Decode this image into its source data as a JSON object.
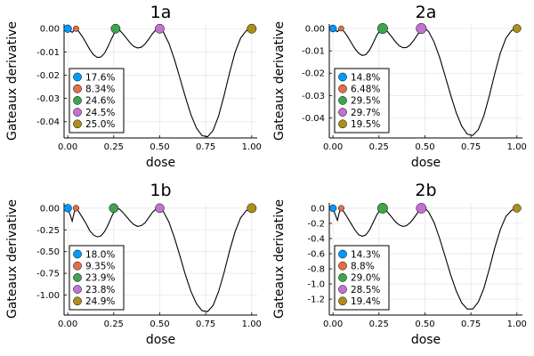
{
  "colors": {
    "s1": "#009AFA",
    "s2": "#E36F47",
    "s3": "#3EA44E",
    "s4": "#C371D2",
    "s5": "#AC8E18",
    "curve": "#000000",
    "grid": "#E6E6E6"
  },
  "chart_data": [
    {
      "type": "line",
      "title": "1a",
      "xlabel": "dose",
      "ylabel": "Gateaux derivative",
      "xlim": [
        -0.02,
        1.03
      ],
      "ylim": [
        -0.047,
        0.002
      ],
      "x_ticks": [
        0.0,
        0.25,
        0.5,
        0.75,
        1.0
      ],
      "x_tick_labels": [
        "0.00",
        "0.25",
        "0.50",
        "0.75",
        "1.00"
      ],
      "y_ticks": [
        0.0,
        -0.01,
        -0.02,
        -0.03,
        -0.04
      ],
      "y_tick_labels": [
        "0.00",
        "-0.01",
        "-0.02",
        "-0.03",
        "-0.04"
      ],
      "grid": true,
      "legend_position": "bottom-left",
      "curve": {
        "x": [
          0.0,
          0.012,
          0.024,
          0.035,
          0.045,
          0.06,
          0.08,
          0.1,
          0.12,
          0.14,
          0.16,
          0.18,
          0.2,
          0.22,
          0.24,
          0.26,
          0.28,
          0.3,
          0.32,
          0.34,
          0.36,
          0.38,
          0.4,
          0.42,
          0.44,
          0.46,
          0.48,
          0.5,
          0.52,
          0.55,
          0.58,
          0.61,
          0.64,
          0.67,
          0.7,
          0.73,
          0.76,
          0.79,
          0.82,
          0.85,
          0.88,
          0.91,
          0.94,
          0.97,
          1.0
        ],
        "y": [
          0.0,
          -0.0009,
          -0.0016,
          -0.0006,
          0.0,
          -0.0012,
          -0.0035,
          -0.0062,
          -0.009,
          -0.0112,
          -0.0124,
          -0.0122,
          -0.0105,
          -0.0075,
          -0.004,
          -0.0008,
          -0.0005,
          -0.0022,
          -0.0042,
          -0.0062,
          -0.0077,
          -0.0083,
          -0.008,
          -0.0066,
          -0.0045,
          -0.0022,
          -0.0005,
          0.0,
          -0.0015,
          -0.0063,
          -0.0132,
          -0.0213,
          -0.0295,
          -0.0371,
          -0.0428,
          -0.046,
          -0.0465,
          -0.0438,
          -0.0376,
          -0.0287,
          -0.0189,
          -0.0101,
          -0.004,
          -0.0009,
          0.0
        ]
      },
      "points": {
        "x": [
          0.0,
          0.045,
          0.26,
          0.5,
          1.0
        ],
        "y": [
          0.0,
          0.0,
          0.0,
          0.0,
          0.0
        ],
        "sizes": [
          0.176,
          0.0834,
          0.246,
          0.245,
          0.25
        ]
      },
      "legend": [
        "17.6%",
        "8.34%",
        "24.6%",
        "24.5%",
        "25.0%"
      ]
    },
    {
      "type": "line",
      "title": "2a",
      "xlabel": "dose",
      "ylabel": "Gateaux derivative",
      "xlim": [
        -0.02,
        1.03
      ],
      "ylim": [
        -0.049,
        0.002
      ],
      "x_ticks": [
        0.0,
        0.25,
        0.5,
        0.75,
        1.0
      ],
      "x_tick_labels": [
        "0.00",
        "0.25",
        "0.50",
        "0.75",
        "1.00"
      ],
      "y_ticks": [
        0.0,
        -0.01,
        -0.02,
        -0.03,
        -0.04
      ],
      "y_tick_labels": [
        "0.00",
        "-0.01",
        "-0.02",
        "-0.03",
        "-0.04"
      ],
      "grid": true,
      "legend_position": "bottom-left",
      "curve": {
        "x": [
          0.0,
          0.012,
          0.024,
          0.035,
          0.045,
          0.06,
          0.08,
          0.1,
          0.12,
          0.14,
          0.16,
          0.18,
          0.2,
          0.22,
          0.24,
          0.26,
          0.28,
          0.3,
          0.32,
          0.34,
          0.36,
          0.38,
          0.4,
          0.42,
          0.44,
          0.46,
          0.48,
          0.5,
          0.52,
          0.55,
          0.58,
          0.61,
          0.64,
          0.67,
          0.7,
          0.73,
          0.76,
          0.79,
          0.82,
          0.85,
          0.88,
          0.91,
          0.94,
          0.97,
          1.0
        ],
        "y": [
          0.0,
          -0.0008,
          -0.0014,
          -0.0005,
          0.0,
          -0.0013,
          -0.0037,
          -0.0064,
          -0.0091,
          -0.0111,
          -0.0121,
          -0.0116,
          -0.0095,
          -0.0062,
          -0.0028,
          -0.0004,
          -0.0002,
          -0.0017,
          -0.0038,
          -0.006,
          -0.0077,
          -0.0086,
          -0.0085,
          -0.0073,
          -0.0052,
          -0.0027,
          -0.0006,
          0.0,
          -0.0014,
          -0.0061,
          -0.013,
          -0.0213,
          -0.0298,
          -0.0377,
          -0.0437,
          -0.0473,
          -0.0479,
          -0.0453,
          -0.0391,
          -0.0301,
          -0.0201,
          -0.0109,
          -0.0044,
          -0.001,
          0.0
        ]
      },
      "points": {
        "x": [
          0.0,
          0.045,
          0.27,
          0.48,
          1.0
        ],
        "y": [
          0.0,
          0.0,
          0.0,
          0.0,
          0.0
        ],
        "sizes": [
          0.148,
          0.0648,
          0.295,
          0.297,
          0.195
        ]
      },
      "legend": [
        "14.8%",
        "6.48%",
        "29.5%",
        "29.7%",
        "19.5%"
      ]
    },
    {
      "type": "line",
      "title": "1b",
      "xlabel": "dose",
      "ylabel": "Gateaux derivative",
      "xlim": [
        -0.02,
        1.03
      ],
      "ylim": [
        -1.23,
        0.06
      ],
      "x_ticks": [
        0.0,
        0.25,
        0.5,
        0.75,
        1.0
      ],
      "x_tick_labels": [
        "0.00",
        "0.25",
        "0.50",
        "0.75",
        "1.00"
      ],
      "y_ticks": [
        0.0,
        -0.25,
        -0.5,
        -0.75,
        -1.0
      ],
      "y_tick_labels": [
        "0.00",
        "-0.25",
        "-0.50",
        "-0.75",
        "-1.00"
      ],
      "grid": true,
      "legend_position": "bottom-left",
      "curve": {
        "x": [
          0.0,
          0.012,
          0.024,
          0.035,
          0.045,
          0.06,
          0.08,
          0.1,
          0.12,
          0.14,
          0.16,
          0.18,
          0.2,
          0.22,
          0.24,
          0.26,
          0.28,
          0.3,
          0.32,
          0.34,
          0.36,
          0.38,
          0.4,
          0.42,
          0.44,
          0.46,
          0.48,
          0.5,
          0.52,
          0.55,
          0.58,
          0.61,
          0.64,
          0.67,
          0.7,
          0.73,
          0.76,
          0.79,
          0.82,
          0.85,
          0.88,
          0.91,
          0.94,
          0.97,
          1.0
        ],
        "y": [
          0.0,
          -0.07,
          -0.15,
          -0.05,
          0.0,
          -0.04,
          -0.11,
          -0.18,
          -0.26,
          -0.31,
          -0.33,
          -0.32,
          -0.27,
          -0.19,
          -0.09,
          -0.01,
          -0.01,
          -0.05,
          -0.1,
          -0.15,
          -0.19,
          -0.21,
          -0.2,
          -0.17,
          -0.11,
          -0.05,
          -0.01,
          0.0,
          -0.04,
          -0.16,
          -0.34,
          -0.55,
          -0.77,
          -0.96,
          -1.1,
          -1.18,
          -1.19,
          -1.12,
          -0.96,
          -0.74,
          -0.49,
          -0.27,
          -0.11,
          -0.03,
          0.0
        ]
      },
      "points": {
        "x": [
          0.0,
          0.045,
          0.25,
          0.5,
          1.0
        ],
        "y": [
          0.0,
          0.0,
          0.0,
          0.0,
          0.0
        ],
        "sizes": [
          0.18,
          0.0935,
          0.239,
          0.238,
          0.249
        ]
      },
      "legend": [
        "18.0%",
        "9.35%",
        "23.9%",
        "23.8%",
        "24.9%"
      ]
    },
    {
      "type": "line",
      "title": "2b",
      "xlabel": "dose",
      "ylabel": "Gateaux derivative",
      "xlim": [
        -0.02,
        1.03
      ],
      "ylim": [
        -1.41,
        0.07
      ],
      "x_ticks": [
        0.0,
        0.25,
        0.5,
        0.75,
        1.0
      ],
      "x_tick_labels": [
        "0.00",
        "0.25",
        "0.50",
        "0.75",
        "1.00"
      ],
      "y_ticks": [
        0.0,
        -0.2,
        -0.4,
        -0.6,
        -0.8,
        -1.0,
        -1.2
      ],
      "y_tick_labels": [
        "0.0",
        "-0.2",
        "-0.4",
        "-0.6",
        "-0.8",
        "-1.0",
        "-1.2"
      ],
      "grid": true,
      "legend_position": "bottom-left",
      "curve": {
        "x": [
          0.0,
          0.012,
          0.024,
          0.035,
          0.045,
          0.06,
          0.08,
          0.1,
          0.12,
          0.14,
          0.16,
          0.18,
          0.2,
          0.22,
          0.24,
          0.26,
          0.28,
          0.3,
          0.32,
          0.34,
          0.36,
          0.38,
          0.4,
          0.42,
          0.44,
          0.46,
          0.48,
          0.5,
          0.52,
          0.55,
          0.58,
          0.61,
          0.64,
          0.67,
          0.7,
          0.73,
          0.76,
          0.79,
          0.82,
          0.85,
          0.88,
          0.91,
          0.94,
          0.97,
          1.0
        ],
        "y": [
          0.0,
          -0.08,
          -0.16,
          -0.05,
          0.0,
          -0.05,
          -0.13,
          -0.21,
          -0.29,
          -0.35,
          -0.37,
          -0.35,
          -0.28,
          -0.18,
          -0.08,
          -0.01,
          -0.01,
          -0.06,
          -0.12,
          -0.18,
          -0.22,
          -0.24,
          -0.23,
          -0.19,
          -0.13,
          -0.06,
          -0.01,
          0.0,
          -0.05,
          -0.19,
          -0.4,
          -0.64,
          -0.88,
          -1.09,
          -1.25,
          -1.33,
          -1.33,
          -1.24,
          -1.06,
          -0.8,
          -0.52,
          -0.28,
          -0.11,
          -0.03,
          0.0
        ]
      },
      "points": {
        "x": [
          0.0,
          0.045,
          0.27,
          0.48,
          1.0
        ],
        "y": [
          0.0,
          0.0,
          0.0,
          0.0,
          0.0
        ],
        "sizes": [
          0.143,
          0.088,
          0.29,
          0.285,
          0.194
        ]
      },
      "legend": [
        "14.3%",
        "8.8%",
        "29.0%",
        "28.5%",
        "19.4%"
      ]
    }
  ]
}
